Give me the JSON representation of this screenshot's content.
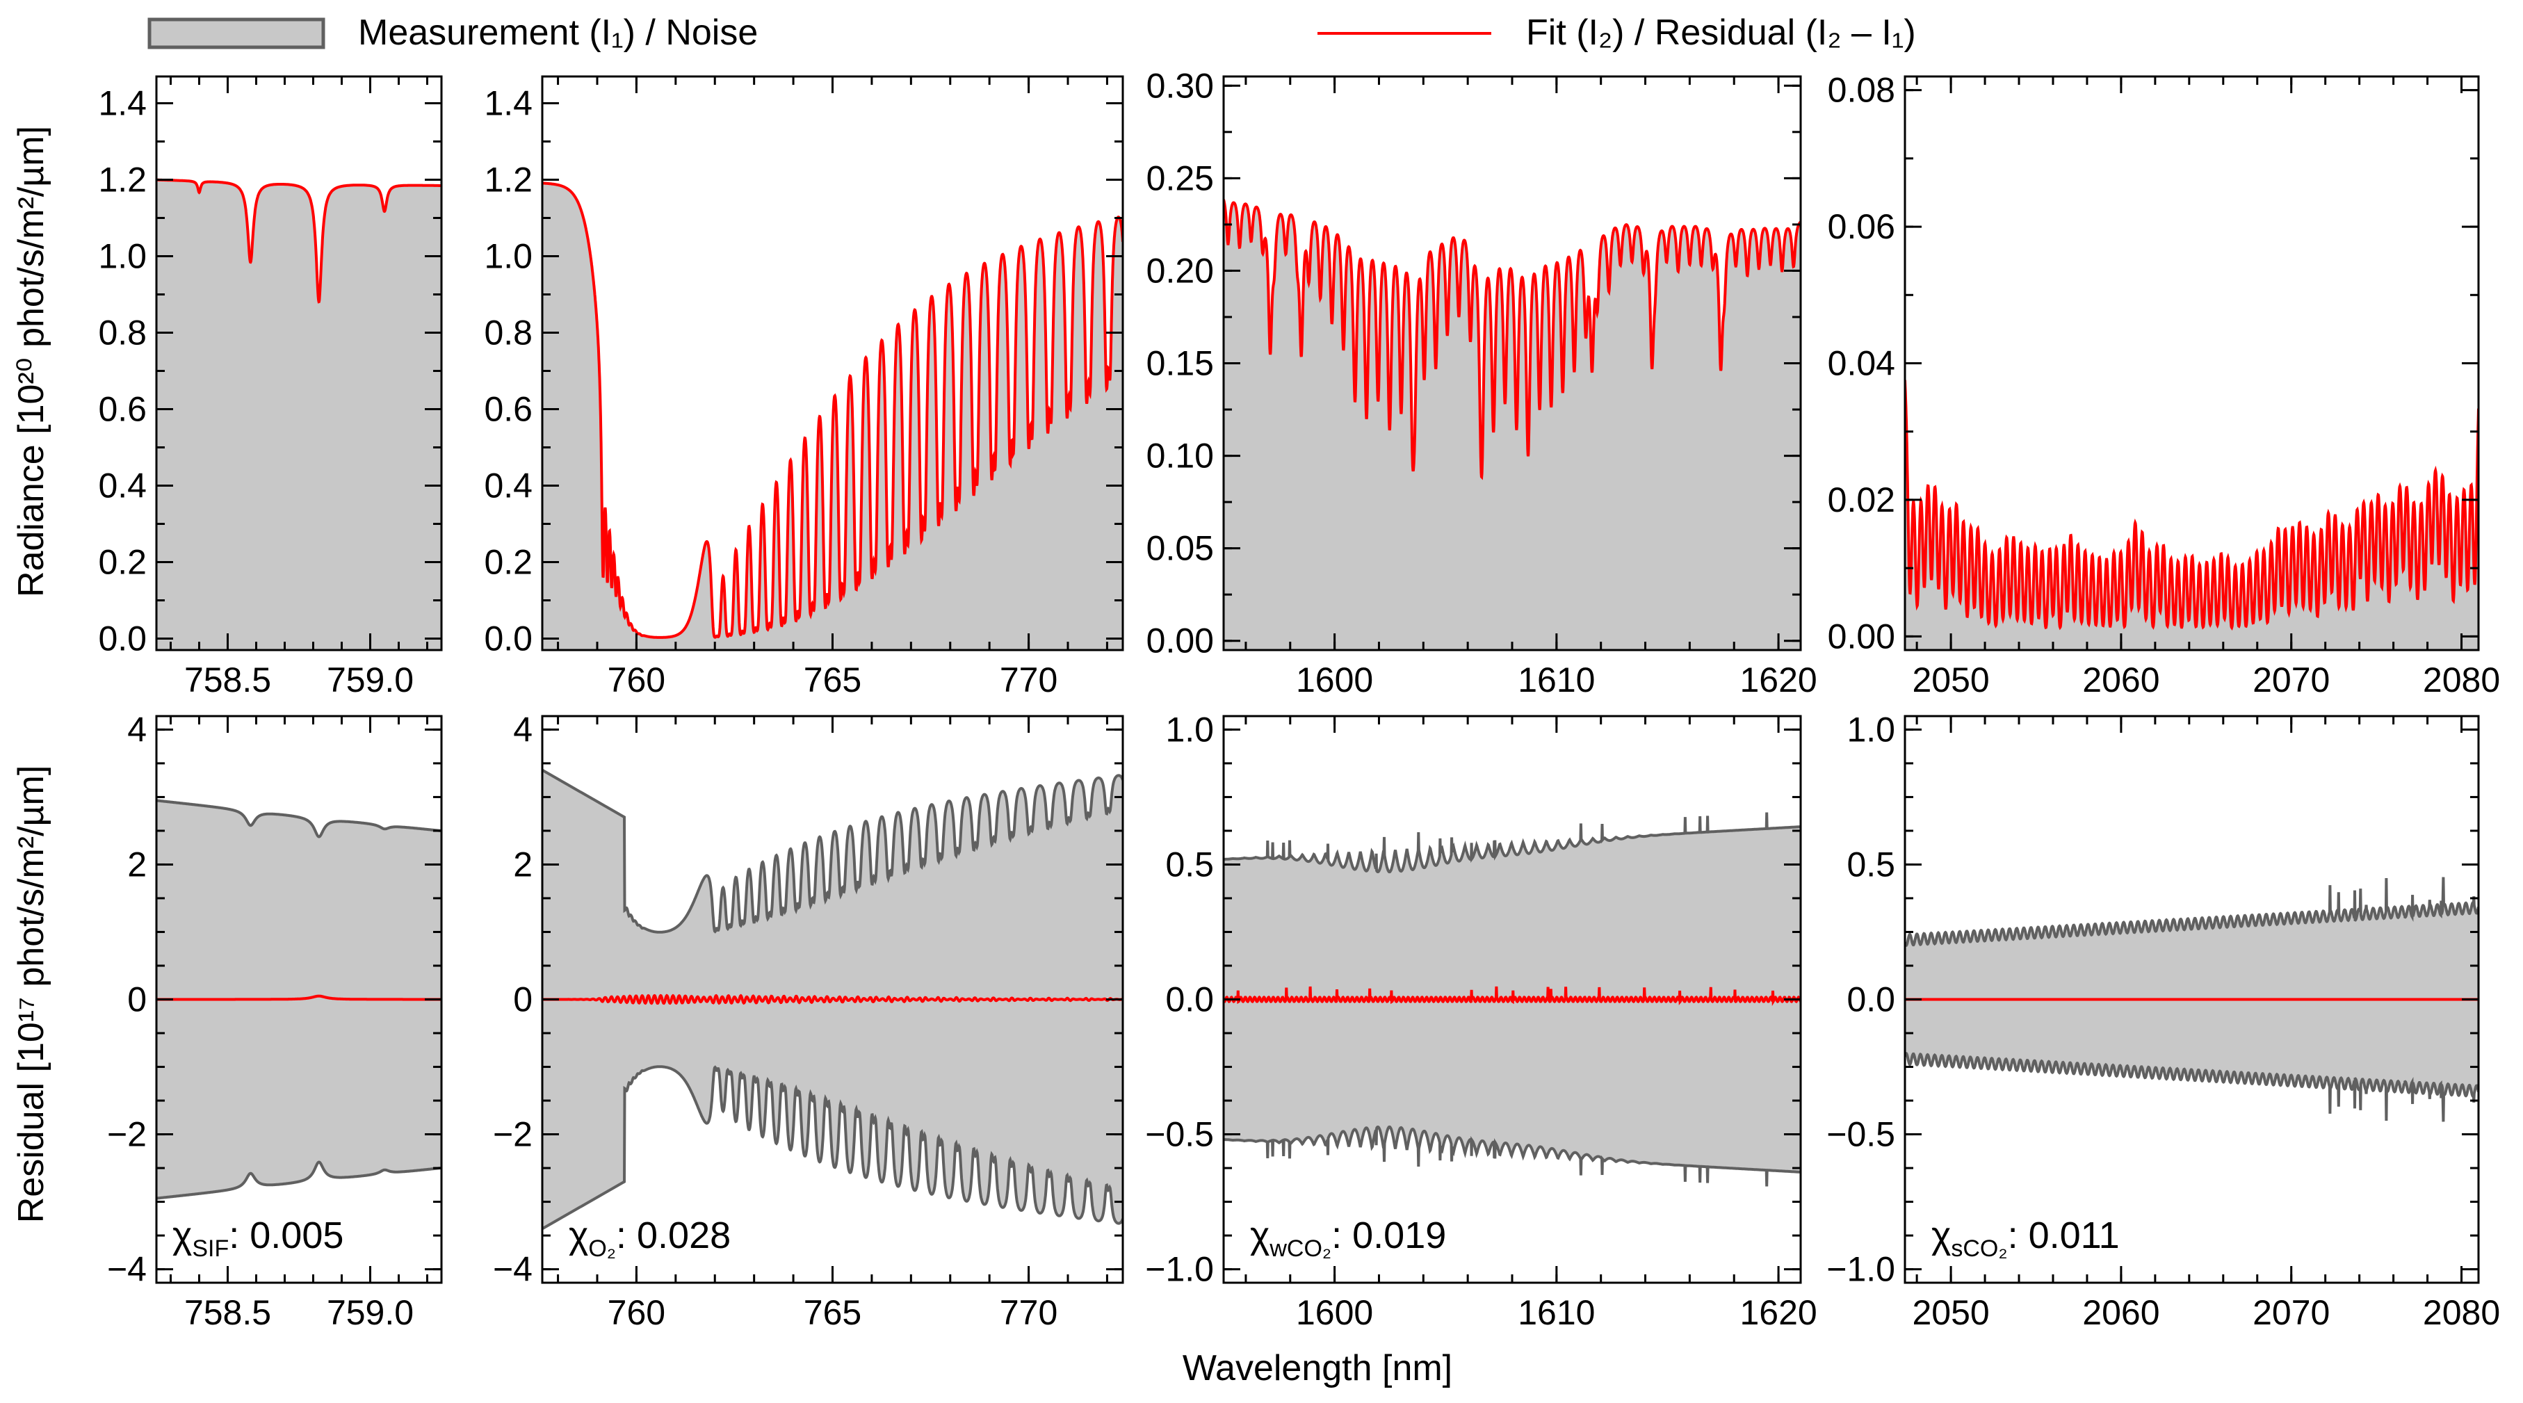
{
  "legend": {
    "measurement_label": "Measurement (I₁) / Noise",
    "fit_label": "Fit (I₂) / Residual (I₂ – I₁)",
    "measurement_color": "#c8c8c8",
    "measurement_edge": "#606060",
    "fit_color": "#ff0000"
  },
  "axes": {
    "top_ylabel": "Radiance [10²⁰ phot/s/m²/µm]",
    "bottom_ylabel": "Residual [10¹⁷ phot/s/m²/µm]",
    "xlabel": "Wavelength [nm]"
  },
  "chi": [
    {
      "symbol": "χ",
      "sub": "SIF",
      "value": ": 0.005"
    },
    {
      "symbol": "χ",
      "sub": "O₂",
      "value": ": 0.028"
    },
    {
      "symbol": "χ",
      "sub": "wCO₂",
      "value": ": 0.019"
    },
    {
      "symbol": "χ",
      "sub": "sCO₂",
      "value": ": 0.011"
    }
  ],
  "chart_data": [
    {
      "type": "area",
      "id": "sif-radiance",
      "series": [
        {
          "name": "Measurement (I₁)"
        },
        {
          "name": "Fit (I₂)"
        }
      ],
      "xlim": [
        758.25,
        759.25
      ],
      "ylim": [
        -0.03,
        1.47
      ],
      "xticks": [
        758.5,
        759.0
      ],
      "xtick_labels": [
        "758.5",
        "759.0"
      ],
      "yticks": [
        0.0,
        0.2,
        0.4,
        0.6,
        0.8,
        1.0,
        1.2,
        1.4
      ],
      "ytick_labels": [
        "0.0",
        "0.2",
        "0.4",
        "0.6",
        "0.8",
        "1.0",
        "1.2",
        "1.4"
      ],
      "gen": {
        "kind": "radiance",
        "baseline": 1.2,
        "lines": [
          [
            758.4,
            0.03,
            0.006
          ],
          [
            758.58,
            0.21,
            0.012
          ],
          [
            758.82,
            0.31,
            0.012
          ],
          [
            759.05,
            0.07,
            0.01
          ]
        ]
      }
    },
    {
      "type": "area",
      "id": "o2-radiance",
      "series": [
        {
          "name": "Measurement (I₁)"
        },
        {
          "name": "Fit (I₂)"
        }
      ],
      "xlim": [
        757.6,
        772.4
      ],
      "ylim": [
        -0.03,
        1.47
      ],
      "xticks": [
        760,
        765,
        770
      ],
      "xtick_labels": [
        "760",
        "765",
        "770"
      ],
      "yticks": [
        0.0,
        0.2,
        0.4,
        0.6,
        0.8,
        1.0,
        1.2,
        1.4
      ],
      "ytick_labels": [
        "0.0",
        "0.2",
        "0.4",
        "0.6",
        "0.8",
        "1.0",
        "1.2",
        "1.4"
      ],
      "gen": {
        "kind": "o2",
        "baseline": 1.2
      }
    },
    {
      "type": "area",
      "id": "wco2-radiance",
      "series": [
        {
          "name": "Measurement (I₁)"
        },
        {
          "name": "Fit (I₂)"
        }
      ],
      "xlim": [
        1595,
        1621
      ],
      "ylim": [
        -0.005,
        0.305
      ],
      "xticks": [
        1600,
        1610,
        1620
      ],
      "xtick_labels": [
        "1600",
        "1610",
        "1620"
      ],
      "yticks": [
        0.0,
        0.05,
        0.1,
        0.15,
        0.2,
        0.25,
        0.3
      ],
      "ytick_labels": [
        "0.00",
        "0.05",
        "0.10",
        "0.15",
        "0.20",
        "0.25",
        "0.30"
      ],
      "gen": {
        "kind": "band",
        "baseline": 0.245,
        "centers": [
          1602.5,
          1608.5
        ],
        "widths": [
          3.0,
          3.2
        ],
        "depth": 0.11,
        "spacing": 0.52
      }
    },
    {
      "type": "area",
      "id": "sco2-radiance",
      "series": [
        {
          "name": "Measurement (I₁)"
        },
        {
          "name": "Fit (I₂)"
        }
      ],
      "xlim": [
        2047.3,
        2081.0
      ],
      "ylim": [
        -0.002,
        0.082
      ],
      "xticks": [
        2050,
        2060,
        2070,
        2080
      ],
      "xtick_labels": [
        "2050",
        "2060",
        "2070",
        "2080"
      ],
      "yticks": [
        0.0,
        0.02,
        0.04,
        0.06,
        0.08
      ],
      "ytick_labels": [
        "0.00",
        "0.02",
        "0.04",
        "0.06",
        "0.08"
      ],
      "gen": {
        "kind": "sco2",
        "baseline": 0.05
      }
    },
    {
      "type": "area",
      "id": "sif-residual",
      "series": [
        {
          "name": "Noise"
        },
        {
          "name": "Residual (I₂ – I₁)"
        }
      ],
      "xlim": [
        758.25,
        759.25
      ],
      "ylim": [
        -4.2,
        4.2
      ],
      "xticks": [
        758.5,
        759.0
      ],
      "xtick_labels": [
        "758.5",
        "759.0"
      ],
      "yticks": [
        -4,
        -2,
        0,
        2,
        4
      ],
      "ytick_labels": [
        "−4",
        "−2",
        "0",
        "2",
        "4"
      ],
      "gen": {
        "kind": "noise",
        "ref": 0,
        "start": 2.95,
        "end": 2.5
      }
    },
    {
      "type": "area",
      "id": "o2-residual",
      "series": [
        {
          "name": "Noise"
        },
        {
          "name": "Residual (I₂ – I₁)"
        }
      ],
      "xlim": [
        757.6,
        772.4
      ],
      "ylim": [
        -4.2,
        4.2
      ],
      "xticks": [
        760,
        765,
        770
      ],
      "xtick_labels": [
        "760",
        "765",
        "770"
      ],
      "yticks": [
        -4,
        -2,
        0,
        2,
        4
      ],
      "ytick_labels": [
        "−4",
        "−2",
        "0",
        "2",
        "4"
      ],
      "gen": {
        "kind": "noise",
        "ref": 1,
        "start": 3.4,
        "end": 3.1
      }
    },
    {
      "type": "area",
      "id": "wco2-residual",
      "series": [
        {
          "name": "Noise"
        },
        {
          "name": "Residual (I₂ – I₁)"
        }
      ],
      "xlim": [
        1595,
        1621
      ],
      "ylim": [
        -1.05,
        1.05
      ],
      "xticks": [
        1600,
        1610,
        1620
      ],
      "xtick_labels": [
        "1600",
        "1610",
        "1620"
      ],
      "yticks": [
        -1.0,
        -0.5,
        0.0,
        0.5,
        1.0
      ],
      "ytick_labels": [
        "−1.0",
        "−0.5",
        "0.0",
        "0.5",
        "1.0"
      ],
      "gen": {
        "kind": "noise",
        "ref": 2,
        "start": 0.52,
        "end": 0.64
      }
    },
    {
      "type": "area",
      "id": "sco2-residual",
      "series": [
        {
          "name": "Noise"
        },
        {
          "name": "Residual (I₂ – I₁)"
        }
      ],
      "xlim": [
        2047.3,
        2081.0
      ],
      "ylim": [
        -1.05,
        1.05
      ],
      "xticks": [
        2050,
        2060,
        2070,
        2080
      ],
      "xtick_labels": [
        "2050",
        "2060",
        "2070",
        "2080"
      ],
      "yticks": [
        -1.0,
        -0.5,
        0.0,
        0.5,
        1.0
      ],
      "ytick_labels": [
        "−1.0",
        "−0.5",
        "0.0",
        "0.5",
        "1.0"
      ],
      "gen": {
        "kind": "noise",
        "ref": 3,
        "start": 0.22,
        "end": 0.34
      }
    }
  ]
}
